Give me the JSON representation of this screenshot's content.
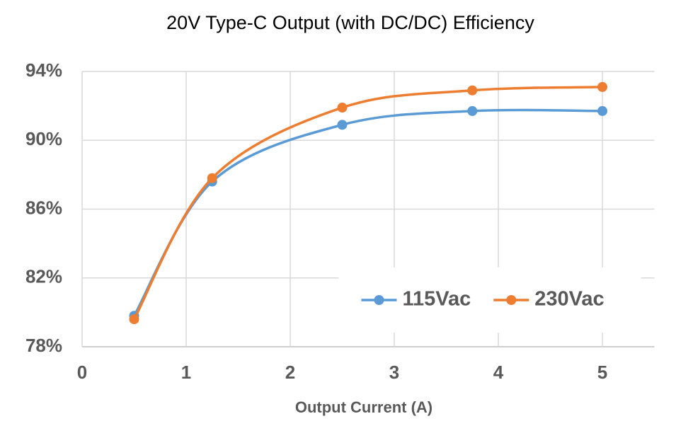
{
  "chart_data": {
    "type": "line",
    "title": "20V Type-C Output (with DC/DC) Efficiency",
    "x_label": "Output Current (A)",
    "x": [
      0.5,
      1.25,
      2.5,
      3.75,
      5
    ],
    "series": [
      {
        "name": "115Vac",
        "color": "#5b9bd5",
        "values": [
          79.8,
          87.6,
          90.9,
          91.7,
          91.7
        ]
      },
      {
        "name": "230Vac",
        "color": "#ed7d31",
        "values": [
          79.6,
          87.8,
          91.9,
          92.9,
          93.1
        ]
      }
    ],
    "xlim": [
      0,
      5.5
    ],
    "xticks": [
      0,
      1,
      2,
      3,
      4,
      5
    ],
    "ylim": [
      78,
      94
    ],
    "yticks": [
      {
        "value": 78,
        "label": "78%"
      },
      {
        "value": 82,
        "label": "82%"
      },
      {
        "value": 86,
        "label": "86%"
      },
      {
        "value": 90,
        "label": "90%"
      },
      {
        "value": 94,
        "label": "94%"
      }
    ],
    "grid": true,
    "smooth": true,
    "legend": "lower right"
  }
}
